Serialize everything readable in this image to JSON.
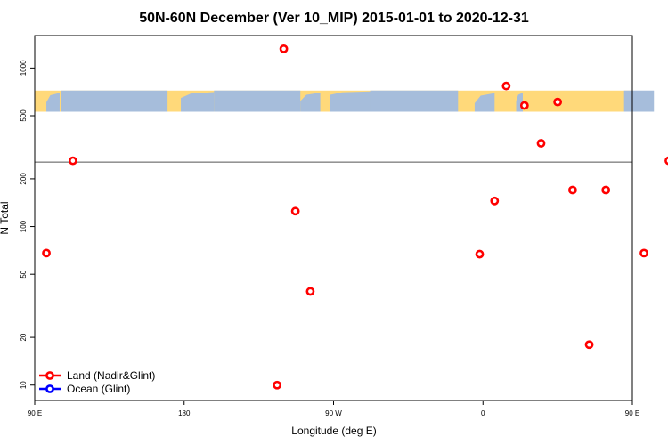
{
  "chart_data": {
    "type": "scatter",
    "title": "50N-60N December (Ver 10_MIP)   2015-01-01 to 2020-12-31",
    "xlabel": "Longitude (deg E)",
    "ylabel": "N Total",
    "xlim": [
      90,
      450
    ],
    "ylim": [
      8,
      1600
    ],
    "y_scale": "log",
    "x_ticks": [
      {
        "value": 90,
        "label": "90 E"
      },
      {
        "value": 180,
        "label": "180"
      },
      {
        "value": 270,
        "label": "90 W"
      },
      {
        "value": 360,
        "label": "0"
      },
      {
        "value": 450,
        "label": "90 E"
      },
      {
        "value": 540,
        "label": "180"
      }
    ],
    "y_ticks": [
      {
        "value": 10,
        "label": "10"
      },
      {
        "value": 20,
        "label": "20"
      },
      {
        "value": 50,
        "label": "50"
      },
      {
        "value": 100,
        "label": "100"
      },
      {
        "value": 200,
        "label": "200"
      },
      {
        "value": 500,
        "label": "500"
      },
      {
        "value": 1000,
        "label": "1000"
      }
    ],
    "reference_line_y": 255,
    "map_strip": {
      "y_min": 530,
      "y_max": 720,
      "land_color": "#ffd97a",
      "ocean_color": "#a6bddb"
    },
    "series": [
      {
        "name": "Land (Nadir&Glint)",
        "color": "#ff0000",
        "points": [
          {
            "x": 97,
            "y": 68
          },
          {
            "x": 113,
            "y": 260
          },
          {
            "x": 240,
            "y": 1320
          },
          {
            "x": 236,
            "y": 10
          },
          {
            "x": 247,
            "y": 125
          },
          {
            "x": 256,
            "y": 39
          },
          {
            "x": 358,
            "y": 67
          },
          {
            "x": 367,
            "y": 145
          },
          {
            "x": 374,
            "y": 770
          },
          {
            "x": 385,
            "y": 580
          },
          {
            "x": 395,
            "y": 335
          },
          {
            "x": 405,
            "y": 610
          },
          {
            "x": 414,
            "y": 170
          },
          {
            "x": 424,
            "y": 18
          },
          {
            "x": 434,
            "y": 170
          },
          {
            "x": 457,
            "y": 68
          },
          {
            "x": 472,
            "y": 260
          }
        ]
      },
      {
        "name": "Ocean (Glint)",
        "color": "#0000ff",
        "points": []
      }
    ],
    "legend_position": "bottom-left"
  }
}
